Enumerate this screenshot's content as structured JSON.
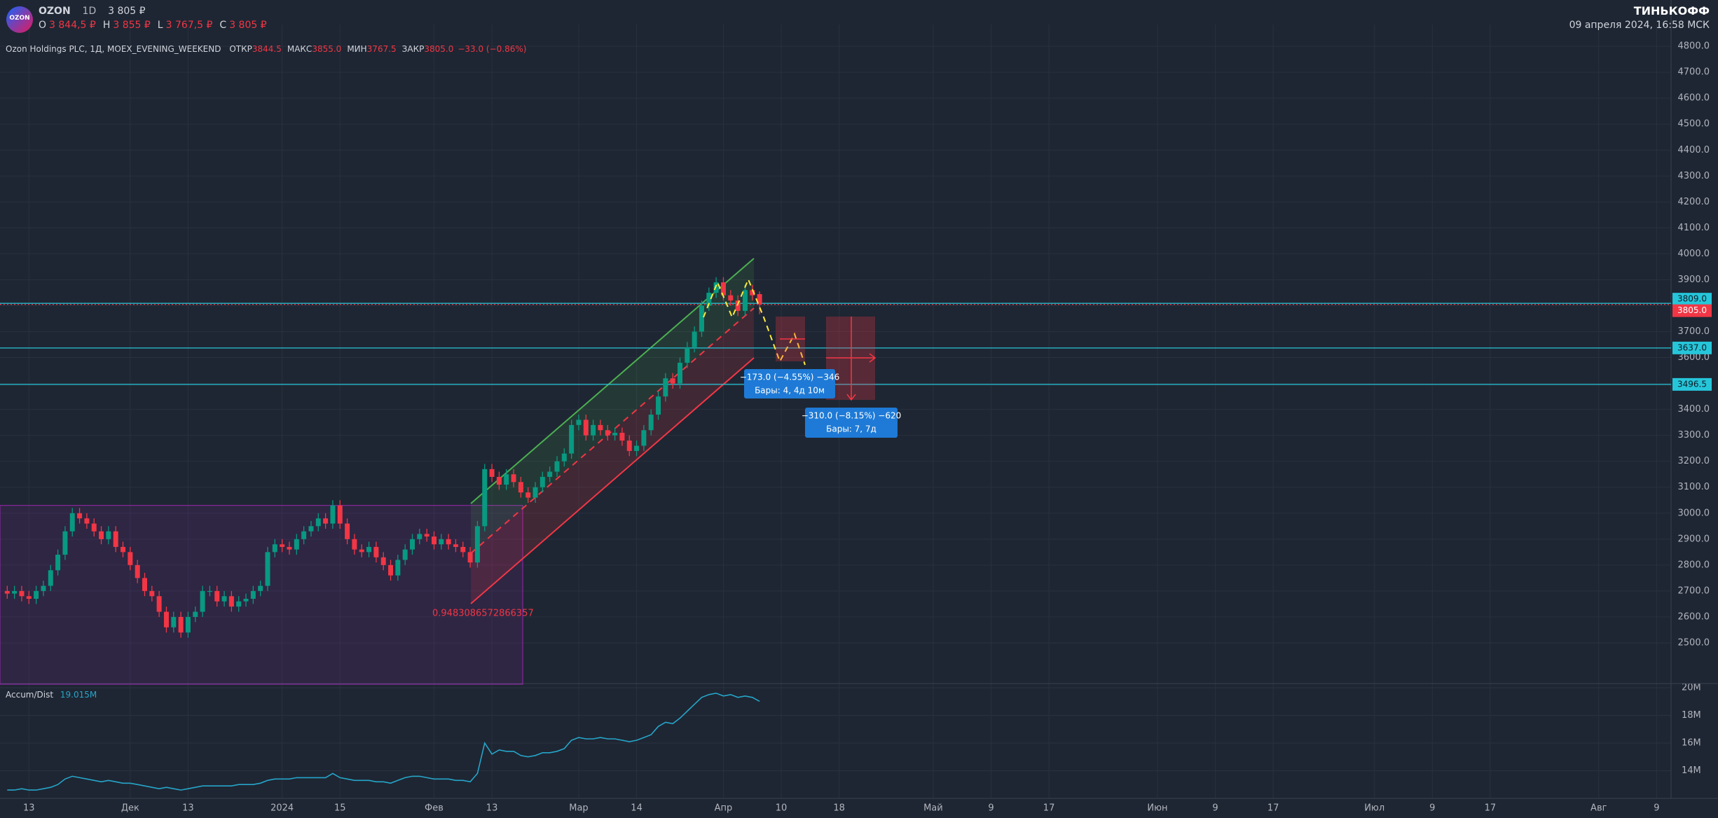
{
  "header": {
    "logo": "OZON",
    "symbol": "OZON",
    "interval": "1D",
    "price": "3 805 ₽",
    "ohlc": [
      {
        "key": "O",
        "value": "3 844,5 ₽"
      },
      {
        "key": "H",
        "value": "3 855 ₽"
      },
      {
        "key": "L",
        "value": "3 767,5 ₽"
      },
      {
        "key": "C",
        "value": "3 805 ₽"
      }
    ],
    "brand": "ТИНЬКОФФ",
    "datetime": "09 апреля 2024, 16:58 МСК",
    "legend": {
      "name": "Ozon Holdings PLC, 1Д, MOEX_EVENING_WEEKEND",
      "fields": [
        {
          "key": "ОТКР",
          "value": "3844.5"
        },
        {
          "key": "МАКС",
          "value": "3855.0"
        },
        {
          "key": "МИН",
          "value": "3767.5"
        },
        {
          "key": "ЗАКР",
          "value": "3805.0"
        }
      ],
      "change": "−33.0 (−0.86%)"
    }
  },
  "chart_data": {
    "type": "candlestick",
    "up_color": "#089981",
    "down_color": "#f23645",
    "grid": true,
    "xlim": [
      -1,
      230
    ],
    "xticks": [
      {
        "value": 3,
        "label": "13"
      },
      {
        "value": 17,
        "label": "Дек"
      },
      {
        "value": 25,
        "label": "13"
      },
      {
        "value": 38,
        "label": "2024"
      },
      {
        "value": 46,
        "label": "15"
      },
      {
        "value": 59,
        "label": "Фев"
      },
      {
        "value": 67,
        "label": "13"
      },
      {
        "value": 79,
        "label": "Мар"
      },
      {
        "value": 87,
        "label": "14"
      },
      {
        "value": 99,
        "label": "Апр"
      },
      {
        "value": 107,
        "label": "10"
      },
      {
        "value": 115,
        "label": "18"
      },
      {
        "value": 128,
        "label": "Май"
      },
      {
        "value": 136,
        "label": "9"
      },
      {
        "value": 144,
        "label": "17"
      },
      {
        "value": 159,
        "label": "Июн"
      },
      {
        "value": 167,
        "label": "9"
      },
      {
        "value": 175,
        "label": "17"
      },
      {
        "value": 189,
        "label": "Июл"
      },
      {
        "value": 197,
        "label": "9"
      },
      {
        "value": 205,
        "label": "17"
      },
      {
        "value": 220,
        "label": "Авг"
      },
      {
        "value": 228,
        "label": "9"
      }
    ],
    "ylim": [
      2346,
      4830
    ],
    "yticks": [
      {
        "value": 2500,
        "label": "2500.0"
      },
      {
        "value": 2600,
        "label": "2600.0"
      },
      {
        "value": 2700,
        "label": "2700.0"
      },
      {
        "value": 2800,
        "label": "2800.0"
      },
      {
        "value": 2900,
        "label": "2900.0"
      },
      {
        "value": 3000,
        "label": "3000.0"
      },
      {
        "value": 3100,
        "label": "3100.0"
      },
      {
        "value": 3200,
        "label": "3200.0"
      },
      {
        "value": 3300,
        "label": "3300.0"
      },
      {
        "value": 3400,
        "label": "3400.0"
      },
      {
        "value": 3500,
        "label": "3500.0"
      },
      {
        "value": 3600,
        "label": "3600.0"
      },
      {
        "value": 3700,
        "label": "3700.0"
      },
      {
        "value": 3800,
        "label": "3800.0"
      },
      {
        "value": 3900,
        "label": "3900.0"
      },
      {
        "value": 4000,
        "label": "4000.0"
      },
      {
        "value": 4100,
        "label": "4100.0"
      },
      {
        "value": 4200,
        "label": "4200.0"
      },
      {
        "value": 4300,
        "label": "4300.0"
      },
      {
        "value": 4400,
        "label": "4400.0"
      },
      {
        "value": 4500,
        "label": "4500.0"
      },
      {
        "value": 4600,
        "label": "4600.0"
      },
      {
        "value": 4700,
        "label": "4700.0"
      },
      {
        "value": 4800,
        "label": "4800.0"
      }
    ],
    "open": [
      2700,
      2690,
      2700,
      2680,
      2670,
      2700,
      2720,
      2780,
      2840,
      2930,
      3000,
      2980,
      2960,
      2930,
      2900,
      2930,
      2870,
      2850,
      2800,
      2750,
      2700,
      2680,
      2620,
      2560,
      2600,
      2540,
      2600,
      2620,
      2700,
      2700,
      2660,
      2680,
      2640,
      2660,
      2670,
      2700,
      2720,
      2850,
      2880,
      2870,
      2860,
      2900,
      2930,
      2950,
      2980,
      2960,
      3030,
      2960,
      2900,
      2860,
      2850,
      2870,
      2830,
      2800,
      2760,
      2820,
      2860,
      2900,
      2920,
      2910,
      2880,
      2900,
      2880,
      2870,
      2850,
      2810,
      2950,
      3170,
      3140,
      3110,
      3150,
      3120,
      3080,
      3060,
      3100,
      3140,
      3160,
      3200,
      3230,
      3340,
      3360,
      3300,
      3340,
      3320,
      3300,
      3310,
      3280,
      3240,
      3260,
      3320,
      3380,
      3450,
      3520,
      3500,
      3580,
      3640,
      3700,
      3800,
      3850,
      3890,
      3840,
      3820,
      3780,
      3860,
      3844.5
    ],
    "high": [
      2720,
      2720,
      2720,
      2700,
      2720,
      2740,
      2800,
      2860,
      2950,
      3020,
      3020,
      3000,
      2980,
      2950,
      2950,
      2950,
      2890,
      2870,
      2820,
      2770,
      2720,
      2700,
      2640,
      2620,
      2620,
      2620,
      2640,
      2720,
      2720,
      2720,
      2700,
      2700,
      2680,
      2690,
      2720,
      2740,
      2870,
      2900,
      2900,
      2890,
      2920,
      2950,
      2970,
      3000,
      3000,
      3050,
      3050,
      2980,
      2920,
      2880,
      2890,
      2890,
      2850,
      2820,
      2840,
      2880,
      2920,
      2940,
      2940,
      2930,
      2920,
      2920,
      2900,
      2890,
      2870,
      2970,
      3190,
      3190,
      3160,
      3170,
      3170,
      3140,
      3100,
      3120,
      3160,
      3180,
      3220,
      3250,
      3360,
      3380,
      3380,
      3360,
      3360,
      3340,
      3330,
      3330,
      3300,
      3280,
      3340,
      3400,
      3470,
      3540,
      3540,
      3600,
      3660,
      3720,
      3820,
      3870,
      3910,
      3910,
      3860,
      3840,
      3880,
      3880,
      3855
    ],
    "low": [
      2670,
      2670,
      2660,
      2650,
      2650,
      2680,
      2700,
      2760,
      2820,
      2910,
      2960,
      2940,
      2910,
      2880,
      2880,
      2850,
      2830,
      2780,
      2730,
      2680,
      2660,
      2600,
      2540,
      2540,
      2520,
      2520,
      2580,
      2600,
      2680,
      2640,
      2640,
      2620,
      2620,
      2640,
      2650,
      2680,
      2700,
      2830,
      2850,
      2840,
      2840,
      2880,
      2910,
      2930,
      2940,
      2940,
      2940,
      2880,
      2840,
      2830,
      2830,
      2810,
      2780,
      2740,
      2740,
      2800,
      2840,
      2880,
      2890,
      2860,
      2860,
      2860,
      2850,
      2830,
      2790,
      2790,
      2930,
      3120,
      3090,
      3090,
      3100,
      3060,
      3040,
      3040,
      3080,
      3120,
      3140,
      3180,
      3210,
      3320,
      3280,
      3280,
      3300,
      3280,
      3280,
      3260,
      3220,
      3220,
      3240,
      3300,
      3360,
      3430,
      3480,
      3480,
      3560,
      3620,
      3680,
      3780,
      3830,
      3820,
      3800,
      3760,
      3760,
      3820,
      3767.5
    ],
    "close": [
      2690,
      2700,
      2680,
      2670,
      2700,
      2720,
      2780,
      2840,
      2930,
      3000,
      2980,
      2960,
      2930,
      2900,
      2930,
      2870,
      2850,
      2800,
      2750,
      2700,
      2680,
      2620,
      2560,
      2600,
      2540,
      2600,
      2620,
      2700,
      2700,
      2660,
      2680,
      2640,
      2660,
      2670,
      2700,
      2720,
      2850,
      2880,
      2870,
      2860,
      2900,
      2930,
      2950,
      2980,
      2960,
      3030,
      2960,
      2900,
      2860,
      2850,
      2870,
      2830,
      2800,
      2760,
      2820,
      2860,
      2900,
      2920,
      2910,
      2880,
      2900,
      2880,
      2870,
      2850,
      2810,
      2950,
      3170,
      3140,
      3110,
      3150,
      3120,
      3080,
      3060,
      3100,
      3140,
      3160,
      3200,
      3230,
      3340,
      3360,
      3300,
      3340,
      3320,
      3300,
      3310,
      3280,
      3240,
      3260,
      3320,
      3380,
      3450,
      3520,
      3500,
      3580,
      3640,
      3700,
      3800,
      3850,
      3890,
      3840,
      3820,
      3780,
      3860,
      3840,
      3805
    ],
    "price_lines": [
      {
        "value": 3809,
        "label": "3809.0",
        "color": "#26c6da"
      },
      {
        "value": 3805,
        "label": "3805.0",
        "color": "#f23645"
      },
      {
        "value": 3637,
        "label": "3637.0",
        "color": "#26c6da"
      },
      {
        "value": 3496.5,
        "label": "3496.5",
        "color": "#26c6da"
      }
    ],
    "annotation": "0.9483086572866357",
    "measures": [
      {
        "change": "−173.0 (−4.55%) −346",
        "bars": "Бары: 4, 4д 10м"
      },
      {
        "change": "−310.0 (−8.15%) −620",
        "bars": "Бары: 7, 7д"
      }
    ],
    "indicator": {
      "name": "Accum/Dist",
      "value": 19.015,
      "value_label": "19.015M",
      "color": "#26a5c9",
      "ylim": [
        12,
        20.25
      ],
      "yticks": [
        {
          "value": 14,
          "label": "14M"
        },
        {
          "value": 16,
          "label": "16M"
        },
        {
          "value": 18,
          "label": "18M"
        },
        {
          "value": 20,
          "label": "20M"
        }
      ],
      "values": [
        12.6,
        12.6,
        12.7,
        12.6,
        12.6,
        12.7,
        12.8,
        13.0,
        13.4,
        13.6,
        13.5,
        13.4,
        13.3,
        13.2,
        13.3,
        13.2,
        13.1,
        13.1,
        13.0,
        12.9,
        12.8,
        12.7,
        12.8,
        12.7,
        12.6,
        12.7,
        12.8,
        12.9,
        12.9,
        12.9,
        12.9,
        12.9,
        13.0,
        13.0,
        13.0,
        13.1,
        13.3,
        13.4,
        13.4,
        13.4,
        13.5,
        13.5,
        13.5,
        13.5,
        13.5,
        13.8,
        13.5,
        13.4,
        13.3,
        13.3,
        13.3,
        13.2,
        13.2,
        13.1,
        13.3,
        13.5,
        13.6,
        13.6,
        13.5,
        13.4,
        13.4,
        13.4,
        13.3,
        13.3,
        13.2,
        13.8,
        16.0,
        15.2,
        15.5,
        15.4,
        15.4,
        15.1,
        15.0,
        15.1,
        15.3,
        15.3,
        15.4,
        15.6,
        16.2,
        16.4,
        16.3,
        16.3,
        16.4,
        16.3,
        16.3,
        16.2,
        16.1,
        16.2,
        16.4,
        16.6,
        17.2,
        17.5,
        17.4,
        17.8,
        18.3,
        18.8,
        19.3,
        19.5,
        19.6,
        19.4,
        19.5,
        19.3,
        19.4,
        19.3,
        19.015
      ]
    }
  }
}
